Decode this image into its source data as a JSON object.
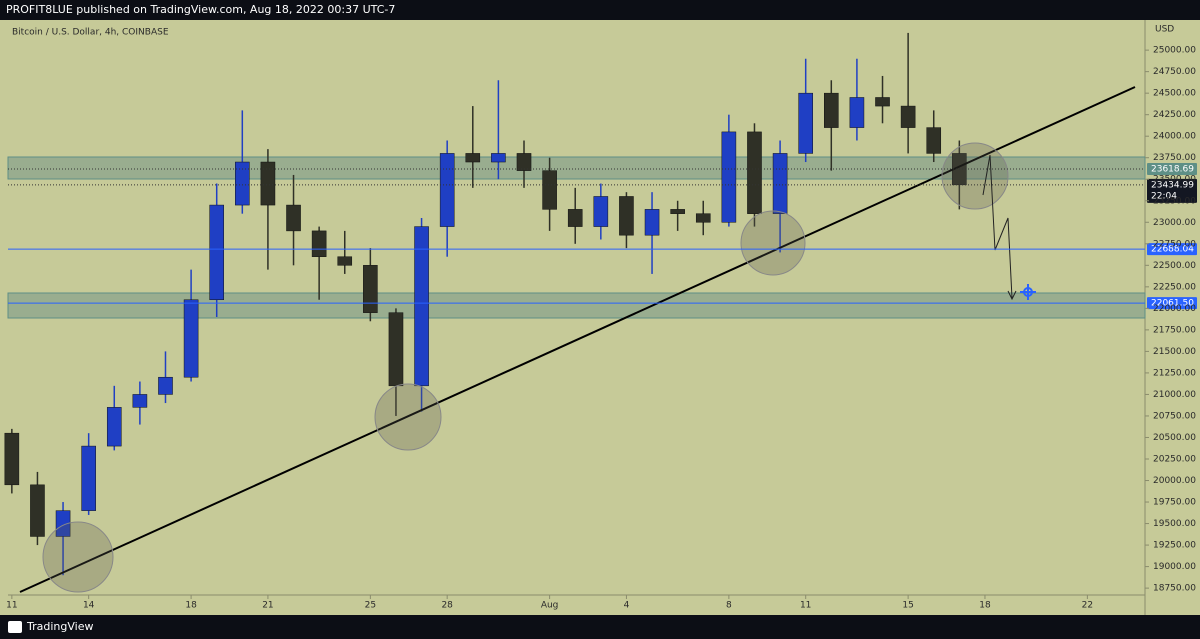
{
  "header": "PROFIT8LUE published on TradingView.com, Aug 18, 2022 00:37 UTC-7",
  "footer": "TradingView",
  "chart_data": {
    "type": "candlestick",
    "title": "Bitcoin / U.S. Dollar, 4h, COINBASE",
    "currency": "USD",
    "up_color": "#1f3fc4",
    "down_color": "#2f3026",
    "x": [
      0,
      1,
      2,
      3,
      4,
      5,
      6,
      7,
      8,
      9,
      10,
      11,
      12,
      13,
      14,
      15,
      16,
      17,
      18,
      19,
      20,
      21,
      22,
      23,
      24,
      25,
      26,
      27,
      28,
      29,
      30,
      31,
      32,
      33,
      34,
      35,
      36,
      37
    ],
    "open": [
      20550,
      19950,
      19350,
      19650,
      20400,
      20850,
      21000,
      21200,
      22100,
      23200,
      23700,
      23200,
      22900,
      22600,
      22500,
      21950,
      21100,
      22950,
      23800,
      23700,
      23800,
      23600,
      23150,
      22950,
      23300,
      22850,
      23150,
      23100,
      23000,
      24050,
      23100,
      23800,
      24500,
      24100,
      24450,
      24350,
      24100,
      23800
    ],
    "high": [
      20600,
      20100,
      19750,
      20550,
      21100,
      21150,
      21500,
      22450,
      23450,
      24300,
      23850,
      23550,
      22950,
      22900,
      22700,
      22000,
      23050,
      23950,
      24350,
      24650,
      23950,
      23750,
      23400,
      23450,
      23350,
      23350,
      23250,
      23250,
      24250,
      24150,
      23950,
      24900,
      24650,
      24900,
      24700,
      25200,
      24300,
      23950
    ],
    "low": [
      19850,
      19250,
      18900,
      19600,
      20350,
      20650,
      20900,
      21150,
      21900,
      23100,
      22450,
      22500,
      22100,
      22400,
      21850,
      20750,
      20800,
      22600,
      23400,
      23500,
      23400,
      22900,
      22750,
      22800,
      22700,
      22400,
      22900,
      22850,
      22950,
      22950,
      22650,
      23700,
      23600,
      23950,
      24150,
      23800,
      23700,
      23150
    ],
    "close": [
      19950,
      19350,
      19650,
      20400,
      20850,
      21000,
      21200,
      22100,
      23200,
      23700,
      23200,
      22900,
      22600,
      22500,
      21950,
      21100,
      22950,
      23800,
      23700,
      23800,
      23600,
      23150,
      22950,
      23300,
      22850,
      23150,
      23100,
      23000,
      24050,
      23100,
      23800,
      24500,
      24100,
      24450,
      24350,
      24100,
      23800,
      23434.99
    ],
    "xlim": [
      -0.15,
      44.25
    ],
    "xticks": [
      {
        "value": 0,
        "label": "11"
      },
      {
        "value": 3,
        "label": "14"
      },
      {
        "value": 7,
        "label": "18"
      },
      {
        "value": 10,
        "label": "21"
      },
      {
        "value": 14,
        "label": "25"
      },
      {
        "value": 17,
        "label": "28"
      },
      {
        "value": 21,
        "label": "Aug"
      },
      {
        "value": 24,
        "label": "4"
      },
      {
        "value": 28,
        "label": "8"
      },
      {
        "value": 31,
        "label": "11"
      },
      {
        "value": 35,
        "label": "15"
      },
      {
        "value": 38,
        "label": "18"
      },
      {
        "value": 42,
        "label": "22"
      }
    ],
    "ylim": [
      18670,
      25350
    ],
    "yticks": [
      {
        "value": 18750,
        "label": "18750.00"
      },
      {
        "value": 19000,
        "label": "19000.00"
      },
      {
        "value": 19250,
        "label": "19250.00"
      },
      {
        "value": 19500,
        "label": "19500.00"
      },
      {
        "value": 19750,
        "label": "19750.00"
      },
      {
        "value": 20000,
        "label": "20000.00"
      },
      {
        "value": 20250,
        "label": "20250.00"
      },
      {
        "value": 20500,
        "label": "20500.00"
      },
      {
        "value": 20750,
        "label": "20750.00"
      },
      {
        "value": 21000,
        "label": "21000.00"
      },
      {
        "value": 21250,
        "label": "21250.00"
      },
      {
        "value": 21500,
        "label": "21500.00"
      },
      {
        "value": 21750,
        "label": "21750.00"
      },
      {
        "value": 22000,
        "label": "22000.00"
      },
      {
        "value": 22250,
        "label": "22250.00"
      },
      {
        "value": 22500,
        "label": "22500.00"
      },
      {
        "value": 22750,
        "label": "22750.00"
      },
      {
        "value": 23000,
        "label": "23000.00"
      },
      {
        "value": 23250,
        "label": "23250.00"
      },
      {
        "value": 23500,
        "label": "23500.00"
      },
      {
        "value": 23750,
        "label": "23750.00"
      },
      {
        "value": 24000,
        "label": "24000.00"
      },
      {
        "value": 24250,
        "label": "24250.00"
      },
      {
        "value": 24500,
        "label": "24500.00"
      },
      {
        "value": 24750,
        "label": "24750.00"
      },
      {
        "value": 25000,
        "label": "25000.00"
      }
    ],
    "levels": [
      {
        "value": 23618.69,
        "label": "23618.69",
        "color": "#5e8f86",
        "style": "dotted"
      },
      {
        "value": 23434.99,
        "label": "23434.99",
        "color": "#131722",
        "style": "dotted",
        "countdown": "22:04"
      },
      {
        "value": 22688.04,
        "label": "22688.04",
        "color": "#2962ff",
        "style": "solid"
      },
      {
        "value": 22061.5,
        "label": "22061.50",
        "color": "#2962ff",
        "style": "solid"
      }
    ]
  }
}
